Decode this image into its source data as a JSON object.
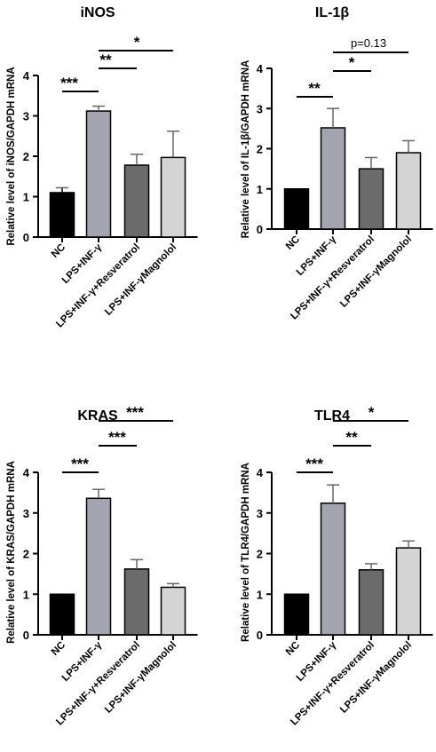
{
  "chart_data": [
    {
      "type": "bar",
      "title": "iNOS",
      "ylabel": "Relative level of iNOS/GAPDH mRNA",
      "xlabel": "",
      "categories": [
        "NC",
        "LPS+INF-γ",
        "LPS+INF-γ+Resveratrol",
        "LPS+INF-γMagnolol"
      ],
      "values": [
        1.1,
        3.12,
        1.78,
        1.97
      ],
      "errors": [
        0.12,
        0.12,
        0.27,
        0.65
      ],
      "colors": [
        "#000000",
        "#a4a4b0",
        "#6b6b6b",
        "#d4d4d4"
      ],
      "ylim": [
        0,
        4
      ],
      "yticks": [
        "0",
        "1",
        "2",
        "3",
        "4"
      ],
      "grid": false,
      "annotations": [
        {
          "from": 0,
          "to": 1,
          "label": "***"
        },
        {
          "from": 1,
          "to": 2,
          "label": "**"
        },
        {
          "from": 1,
          "to": 3,
          "label": "*"
        }
      ]
    },
    {
      "type": "bar",
      "title": "IL-1β",
      "ylabel": "Relative level of IL-1β/GAPDH mRNA",
      "xlabel": "",
      "categories": [
        "NC",
        "LPS+INF-γ",
        "LPS+INF-γ+Resveratrol",
        "LPS+INF-γMagnolol"
      ],
      "values": [
        1.0,
        2.52,
        1.5,
        1.9
      ],
      "errors": [
        0.0,
        0.48,
        0.28,
        0.3
      ],
      "colors": [
        "#000000",
        "#a4a4b0",
        "#6b6b6b",
        "#d4d4d4"
      ],
      "ylim": [
        0,
        4
      ],
      "yticks": [
        "0",
        "1",
        "2",
        "3",
        "4"
      ],
      "grid": false,
      "annotations": [
        {
          "from": 0,
          "to": 1,
          "label": "**"
        },
        {
          "from": 1,
          "to": 2,
          "label": "*"
        },
        {
          "from": 1,
          "to": 3,
          "label": "p=0.13"
        }
      ]
    },
    {
      "type": "bar",
      "title": "KRAS",
      "ylabel": "Relative level of KRAS/GAPDH mRNA",
      "xlabel": "",
      "categories": [
        "NC",
        "LPS+INF-γ",
        "LPS+INF-γ+Resveratrol",
        "LPS+INF-γMagnolol"
      ],
      "values": [
        1.0,
        3.36,
        1.62,
        1.17
      ],
      "errors": [
        0.0,
        0.22,
        0.23,
        0.09
      ],
      "colors": [
        "#000000",
        "#a4a4b0",
        "#6b6b6b",
        "#d4d4d4"
      ],
      "ylim": [
        0,
        4
      ],
      "yticks": [
        "0",
        "1",
        "2",
        "3",
        "4"
      ],
      "grid": false,
      "annotations": [
        {
          "from": 0,
          "to": 1,
          "label": "***"
        },
        {
          "from": 1,
          "to": 2,
          "label": "***"
        },
        {
          "from": 1,
          "to": 3,
          "label": "***"
        }
      ]
    },
    {
      "type": "bar",
      "title": "TLR4",
      "ylabel": "Relative level of TLR4/GAPDH mRNA",
      "xlabel": "",
      "categories": [
        "NC",
        "LPS+INF-γ",
        "LPS+INF-γ+Resveratrol",
        "LPS+INF-γMagnolol"
      ],
      "values": [
        1.0,
        3.24,
        1.6,
        2.14
      ],
      "errors": [
        0.0,
        0.45,
        0.15,
        0.17
      ],
      "colors": [
        "#000000",
        "#a4a4b0",
        "#6b6b6b",
        "#d4d4d4"
      ],
      "ylim": [
        0,
        4
      ],
      "yticks": [
        "0",
        "1",
        "2",
        "3",
        "4"
      ],
      "grid": false,
      "annotations": [
        {
          "from": 0,
          "to": 1,
          "label": "***"
        },
        {
          "from": 1,
          "to": 2,
          "label": "**"
        },
        {
          "from": 1,
          "to": 3,
          "label": "*"
        }
      ]
    }
  ]
}
